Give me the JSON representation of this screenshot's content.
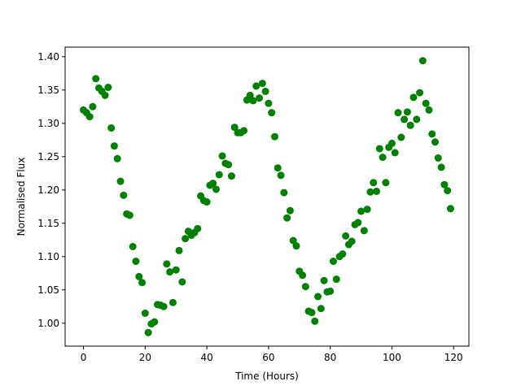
{
  "chart_data": {
    "type": "scatter",
    "x_label": "Time (Hours)",
    "y_label": "Normalised Flux",
    "color": "#008000",
    "x": [
      0,
      1,
      2,
      3,
      4,
      5,
      6,
      7,
      8,
      9,
      10,
      11,
      12,
      13,
      14,
      15,
      16,
      17,
      18,
      19,
      20,
      21,
      22,
      23,
      24,
      25,
      26,
      27,
      28,
      29,
      30,
      31,
      32,
      33,
      34,
      35,
      36,
      37,
      38,
      39,
      40,
      41,
      42,
      43,
      44,
      45,
      46,
      47,
      48,
      49,
      50,
      51,
      52,
      53,
      54,
      55,
      56,
      57,
      58,
      59,
      60,
      61,
      62,
      63,
      64,
      65,
      66,
      67,
      68,
      69,
      70,
      71,
      72,
      73,
      74,
      75,
      76,
      77,
      78,
      79,
      80,
      81,
      82,
      83,
      84,
      85,
      86,
      87,
      88,
      89,
      90,
      91,
      92,
      93,
      94,
      95,
      96,
      97,
      98,
      99,
      100,
      101,
      102,
      103,
      104,
      105,
      106,
      107,
      108,
      109,
      110,
      111,
      112,
      113,
      114,
      115,
      116,
      117,
      118,
      119
    ],
    "values": [
      1.32,
      1.316,
      1.31,
      1.325,
      1.367,
      1.353,
      1.348,
      1.342,
      1.354,
      1.293,
      1.266,
      1.247,
      1.213,
      1.192,
      1.164,
      1.162,
      1.115,
      1.093,
      1.07,
      1.061,
      1.015,
      0.986,
      0.999,
      1.002,
      1.028,
      1.027,
      1.025,
      1.089,
      1.077,
      1.031,
      1.08,
      1.109,
      1.062,
      1.127,
      1.138,
      1.132,
      1.136,
      1.142,
      1.191,
      1.184,
      1.182,
      1.207,
      1.21,
      1.201,
      1.223,
      1.251,
      1.24,
      1.238,
      1.221,
      1.294,
      1.286,
      1.286,
      1.289,
      1.335,
      1.342,
      1.334,
      1.356,
      1.338,
      1.36,
      1.348,
      1.33,
      1.316,
      1.28,
      1.233,
      1.222,
      1.196,
      1.158,
      1.169,
      1.124,
      1.116,
      1.078,
      1.072,
      1.055,
      1.018,
      1.016,
      1.003,
      1.04,
      1.022,
      1.064,
      1.047,
      1.048,
      1.093,
      1.066,
      1.1,
      1.104,
      1.131,
      1.118,
      1.123,
      1.148,
      1.151,
      1.168,
      1.139,
      1.171,
      1.197,
      1.211,
      1.198,
      1.262,
      1.249,
      1.211,
      1.264,
      1.27,
      1.256,
      1.316,
      1.279,
      1.306,
      1.317,
      1.297,
      1.339,
      1.306,
      1.346,
      1.394,
      1.33,
      1.32,
      1.284,
      1.272,
      1.248,
      1.234,
      1.208,
      1.199,
      1.172
    ],
    "xlim": [
      -5.95,
      124.95
    ],
    "ylim": [
      0.9656,
      1.4144
    ],
    "xticks": [
      0,
      20,
      40,
      60,
      80,
      100,
      120
    ],
    "yticks": [
      {
        "value": 1.0,
        "label": "1.00"
      },
      1.05,
      {
        "value": 1.1,
        "label": "1.10"
      },
      1.15,
      {
        "value": 1.2,
        "label": "1.20"
      },
      1.25,
      {
        "value": 1.3,
        "label": "1.30"
      },
      1.35,
      {
        "value": 1.4,
        "label": "1.40"
      }
    ]
  }
}
